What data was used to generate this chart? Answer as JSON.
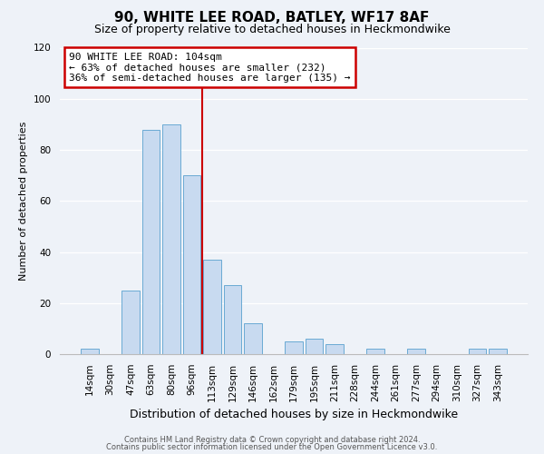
{
  "title": "90, WHITE LEE ROAD, BATLEY, WF17 8AF",
  "subtitle": "Size of property relative to detached houses in Heckmondwike",
  "xlabel": "Distribution of detached houses by size in Heckmondwike",
  "ylabel": "Number of detached properties",
  "bar_labels": [
    "14sqm",
    "30sqm",
    "47sqm",
    "63sqm",
    "80sqm",
    "96sqm",
    "113sqm",
    "129sqm",
    "146sqm",
    "162sqm",
    "179sqm",
    "195sqm",
    "211sqm",
    "228sqm",
    "244sqm",
    "261sqm",
    "277sqm",
    "294sqm",
    "310sqm",
    "327sqm",
    "343sqm"
  ],
  "bar_values": [
    2,
    0,
    25,
    88,
    90,
    70,
    37,
    27,
    12,
    0,
    5,
    6,
    4,
    0,
    2,
    0,
    2,
    0,
    0,
    2,
    2
  ],
  "bar_color": "#c8daf0",
  "bar_edge_color": "#6aaad4",
  "vline_x": 5.5,
  "vline_color": "#cc0000",
  "annotation_title": "90 WHITE LEE ROAD: 104sqm",
  "annotation_line1": "← 63% of detached houses are smaller (232)",
  "annotation_line2": "36% of semi-detached houses are larger (135) →",
  "annotation_box_color": "#ffffff",
  "annotation_box_edge": "#cc0000",
  "ylim": [
    0,
    120
  ],
  "yticks": [
    0,
    20,
    40,
    60,
    80,
    100,
    120
  ],
  "footer1": "Contains HM Land Registry data © Crown copyright and database right 2024.",
  "footer2": "Contains public sector information licensed under the Open Government Licence v3.0.",
  "background_color": "#eef2f8",
  "plot_background": "#eef2f8",
  "grid_color": "#ffffff",
  "title_fontsize": 11,
  "subtitle_fontsize": 9,
  "xlabel_fontsize": 9,
  "ylabel_fontsize": 8,
  "tick_fontsize": 7.5,
  "footer_fontsize": 6
}
